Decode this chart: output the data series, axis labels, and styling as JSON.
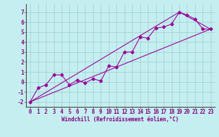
{
  "xlabel": "Windchill (Refroidissement éolien,°C)",
  "bg_color": "#c5eef0",
  "line_color": "#990099",
  "grid_color": "#99cccc",
  "xlim": [
    -0.5,
    23.5
  ],
  "ylim": [
    -2.5,
    7.8
  ],
  "xticks": [
    0,
    1,
    2,
    3,
    4,
    5,
    6,
    7,
    8,
    9,
    10,
    11,
    12,
    13,
    14,
    15,
    16,
    17,
    18,
    19,
    20,
    21,
    22,
    23
  ],
  "yticks": [
    -2,
    -1,
    0,
    1,
    2,
    3,
    4,
    5,
    6,
    7
  ],
  "scatter_x": [
    0,
    1,
    2,
    3,
    4,
    5,
    6,
    7,
    8,
    9,
    10,
    11,
    12,
    13,
    14,
    15,
    16,
    17,
    18,
    19,
    20,
    21,
    22,
    23
  ],
  "scatter_y": [
    -2.0,
    -0.6,
    -0.3,
    0.7,
    0.7,
    -0.3,
    0.2,
    -0.1,
    0.3,
    0.1,
    1.6,
    1.5,
    3.0,
    3.0,
    4.5,
    4.4,
    5.4,
    5.5,
    5.8,
    7.0,
    6.7,
    6.3,
    5.3,
    5.3
  ],
  "line1_x": [
    0,
    23
  ],
  "line1_y": [
    -2.0,
    5.3
  ],
  "line2_x": [
    0,
    19,
    23
  ],
  "line2_y": [
    -2.0,
    7.0,
    5.3
  ],
  "tick_fontsize": 5.5,
  "xlabel_fontsize": 5.5,
  "marker_size": 2.2,
  "linewidth": 0.8
}
